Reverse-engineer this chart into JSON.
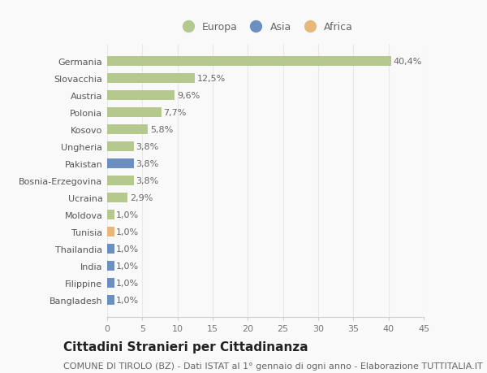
{
  "categories": [
    "Germania",
    "Slovacchia",
    "Austria",
    "Polonia",
    "Kosovo",
    "Ungheria",
    "Pakistan",
    "Bosnia-Erzegovina",
    "Ucraina",
    "Moldova",
    "Tunisia",
    "Thailandia",
    "India",
    "Filippine",
    "Bangladesh"
  ],
  "values": [
    40.4,
    12.5,
    9.6,
    7.7,
    5.8,
    3.8,
    3.8,
    3.8,
    2.9,
    1.0,
    1.0,
    1.0,
    1.0,
    1.0,
    1.0
  ],
  "labels": [
    "40,4%",
    "12,5%",
    "9,6%",
    "7,7%",
    "5,8%",
    "3,8%",
    "3,8%",
    "3,8%",
    "2,9%",
    "1,0%",
    "1,0%",
    "1,0%",
    "1,0%",
    "1,0%",
    "1,0%"
  ],
  "continent": [
    "Europa",
    "Europa",
    "Europa",
    "Europa",
    "Europa",
    "Europa",
    "Asia",
    "Europa",
    "Europa",
    "Europa",
    "Africa",
    "Asia",
    "Asia",
    "Asia",
    "Asia"
  ],
  "colors": {
    "Europa": "#b5c98e",
    "Asia": "#6b8fbf",
    "Africa": "#e8b87a"
  },
  "legend_order": [
    "Europa",
    "Asia",
    "Africa"
  ],
  "xlim": [
    0,
    45
  ],
  "xticks": [
    0,
    5,
    10,
    15,
    20,
    25,
    30,
    35,
    40,
    45
  ],
  "background_color": "#f9f9f9",
  "grid_color": "#e8e8e8",
  "title": "Cittadini Stranieri per Cittadinanza",
  "subtitle": "COMUNE DI TIROLO (BZ) - Dati ISTAT al 1° gennaio di ogni anno - Elaborazione TUTTITALIA.IT",
  "title_fontsize": 11,
  "subtitle_fontsize": 8,
  "label_fontsize": 8,
  "tick_fontsize": 8
}
